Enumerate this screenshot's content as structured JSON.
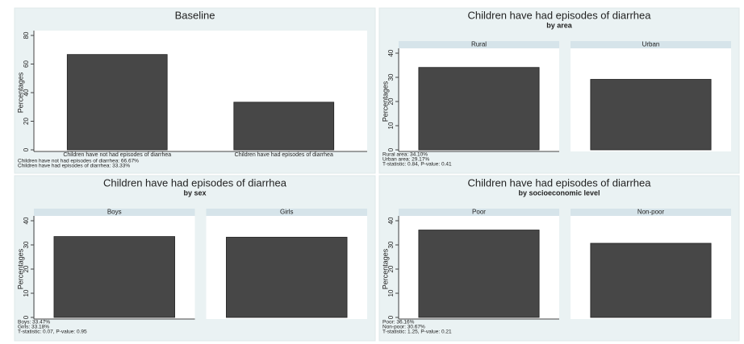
{
  "chart_data": [
    {
      "type": "bar",
      "title": "Baseline",
      "ylabel": "Percentages",
      "categories": [
        "Children have not had episodes of diarrhea",
        "Children have had episodes of diarrhea"
      ],
      "values": [
        66.67,
        33.33
      ],
      "color": "#474747",
      "ylim": [
        0,
        80
      ],
      "yticks": [
        0,
        20,
        40,
        60,
        80
      ],
      "facets": false,
      "notes": [
        "Children have not had episodes of diarrhea: 66.67%",
        "Children have had episodes of diarrhea: 33.33%"
      ]
    },
    {
      "type": "bar",
      "title": "Children have had episodes of diarrhea",
      "subtitle": "by area",
      "ylabel": "Percentages",
      "categories": [
        "Rural",
        "Urban"
      ],
      "values": [
        34.1,
        29.17
      ],
      "color": "#474747",
      "ylim": [
        0,
        40
      ],
      "yticks": [
        0,
        10,
        20,
        30,
        40
      ],
      "facets": true,
      "notes": [
        "Rural area: 34.10%",
        "Urban area: 29.17%",
        "T-statistic: 0.84, P-value: 0.41"
      ]
    },
    {
      "type": "bar",
      "title": "Children have had episodes of diarrhea",
      "subtitle": "by sex",
      "ylabel": "Percentages",
      "categories": [
        "Boys",
        "Girls"
      ],
      "values": [
        33.47,
        33.18
      ],
      "color": "#474747",
      "ylim": [
        0,
        40
      ],
      "yticks": [
        0,
        10,
        20,
        30,
        40
      ],
      "facets": true,
      "notes": [
        "Boys: 33.47%",
        "Girls: 33.18%",
        "T-statistic: 0.07, P-value: 0.95"
      ]
    },
    {
      "type": "bar",
      "title": "Children have had episodes of diarrhea",
      "subtitle": "by socioeconomic level",
      "ylabel": "Percentages",
      "categories": [
        "Poor",
        "Non-poor"
      ],
      "values": [
        36.16,
        30.67
      ],
      "color": "#474747",
      "ylim": [
        0,
        40
      ],
      "yticks": [
        0,
        10,
        20,
        30,
        40
      ],
      "facets": true,
      "notes": [
        "Poor: 36.16%",
        "Non-poor: 30.67%",
        "T-statistic: 1.25, P-value: 0.21"
      ]
    }
  ]
}
